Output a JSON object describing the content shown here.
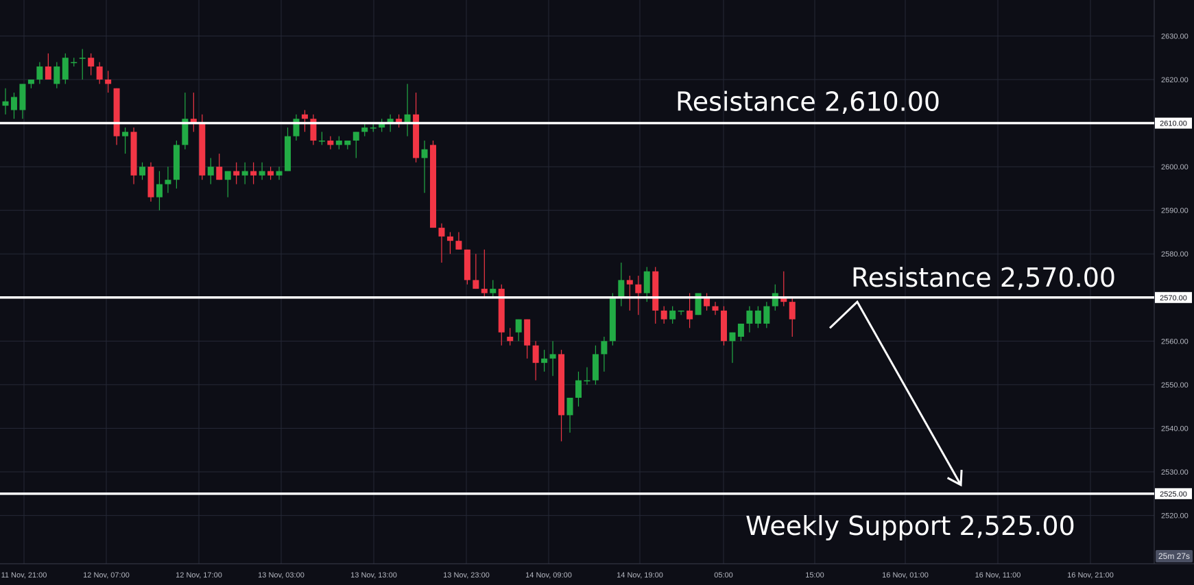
{
  "chart_data": {
    "type": "candlestick",
    "title": "",
    "xlabel": "",
    "ylabel": "",
    "ylim": [
      2510.5,
      2634
    ],
    "y_ticks": [
      "2630.00",
      "2620.00",
      "2610.00",
      "2600.00",
      "2590.00",
      "2580.00",
      "2570.00",
      "2560.00",
      "2550.00",
      "2540.00",
      "2530.00",
      "2520.00"
    ],
    "x_ticks": [
      "11 Nov, 21:00",
      "12 Nov, 07:00",
      "12 Nov, 17:00",
      "13 Nov, 03:00",
      "13 Nov, 13:00",
      "13 Nov, 23:00",
      "14 Nov, 09:00",
      "14 Nov, 19:00",
      "05:00",
      "15:00",
      "16 Nov, 01:00",
      "16 Nov, 11:00",
      "16 Nov, 21:00"
    ],
    "grid": true,
    "colors": {
      "up": "#22ab45",
      "down": "#f23645",
      "background": "#0d0e16",
      "grid": "#252836",
      "level": "#ffffff"
    },
    "candles": [
      {
        "o": 2614,
        "h": 2618,
        "l": 2612,
        "c": 2615
      },
      {
        "o": 2613,
        "h": 2617,
        "l": 2611,
        "c": 2616
      },
      {
        "o": 2613,
        "h": 2619,
        "l": 2611,
        "c": 2619
      },
      {
        "o": 2619,
        "h": 2620,
        "l": 2618,
        "c": 2620
      },
      {
        "o": 2620,
        "h": 2624,
        "l": 2619,
        "c": 2623
      },
      {
        "o": 2623,
        "h": 2626,
        "l": 2620,
        "c": 2620
      },
      {
        "o": 2619,
        "h": 2624,
        "l": 2618,
        "c": 2623
      },
      {
        "o": 2620,
        "h": 2626,
        "l": 2619,
        "c": 2625
      },
      {
        "o": 2624,
        "h": 2625,
        "l": 2623,
        "c": 2624
      },
      {
        "o": 2625,
        "h": 2627,
        "l": 2620,
        "c": 2625
      },
      {
        "o": 2625,
        "h": 2626,
        "l": 2621,
        "c": 2623
      },
      {
        "o": 2623,
        "h": 2624,
        "l": 2619,
        "c": 2620
      },
      {
        "o": 2620,
        "h": 2622,
        "l": 2617,
        "c": 2619
      },
      {
        "o": 2618,
        "h": 2618,
        "l": 2605,
        "c": 2607
      },
      {
        "o": 2607,
        "h": 2609,
        "l": 2603,
        "c": 2608
      },
      {
        "o": 2608,
        "h": 2609,
        "l": 2596,
        "c": 2598
      },
      {
        "o": 2598,
        "h": 2601,
        "l": 2597,
        "c": 2600
      },
      {
        "o": 2600,
        "h": 2601,
        "l": 2592,
        "c": 2593
      },
      {
        "o": 2593,
        "h": 2599,
        "l": 2590,
        "c": 2596
      },
      {
        "o": 2596,
        "h": 2600,
        "l": 2594,
        "c": 2597
      },
      {
        "o": 2597,
        "h": 2606,
        "l": 2595,
        "c": 2605
      },
      {
        "o": 2605,
        "h": 2617,
        "l": 2604,
        "c": 2611
      },
      {
        "o": 2611,
        "h": 2617,
        "l": 2608,
        "c": 2610
      },
      {
        "o": 2610,
        "h": 2612,
        "l": 2597,
        "c": 2598
      },
      {
        "o": 2598,
        "h": 2602,
        "l": 2596,
        "c": 2600
      },
      {
        "o": 2600,
        "h": 2603,
        "l": 2597,
        "c": 2597
      },
      {
        "o": 2597,
        "h": 2599,
        "l": 2593,
        "c": 2599
      },
      {
        "o": 2599,
        "h": 2601,
        "l": 2596,
        "c": 2598
      },
      {
        "o": 2598,
        "h": 2601,
        "l": 2596,
        "c": 2599
      },
      {
        "o": 2599,
        "h": 2601,
        "l": 2596,
        "c": 2598
      },
      {
        "o": 2598,
        "h": 2601,
        "l": 2597,
        "c": 2599
      },
      {
        "o": 2599,
        "h": 2600,
        "l": 2597,
        "c": 2598
      },
      {
        "o": 2598,
        "h": 2600,
        "l": 2597,
        "c": 2599
      },
      {
        "o": 2599,
        "h": 2609,
        "l": 2599,
        "c": 2607
      },
      {
        "o": 2607,
        "h": 2612,
        "l": 2606,
        "c": 2611
      },
      {
        "o": 2612,
        "h": 2613,
        "l": 2608,
        "c": 2611
      },
      {
        "o": 2611,
        "h": 2612,
        "l": 2605,
        "c": 2606
      },
      {
        "o": 2606,
        "h": 2608,
        "l": 2605,
        "c": 2606
      },
      {
        "o": 2606,
        "h": 2607,
        "l": 2604,
        "c": 2605
      },
      {
        "o": 2605,
        "h": 2607,
        "l": 2604,
        "c": 2606
      },
      {
        "o": 2605,
        "h": 2606,
        "l": 2604,
        "c": 2606
      },
      {
        "o": 2606,
        "h": 2608,
        "l": 2602,
        "c": 2608
      },
      {
        "o": 2608,
        "h": 2610,
        "l": 2607,
        "c": 2609
      },
      {
        "o": 2609,
        "h": 2610,
        "l": 2608,
        "c": 2609
      },
      {
        "o": 2609,
        "h": 2611,
        "l": 2608,
        "c": 2610
      },
      {
        "o": 2610,
        "h": 2612,
        "l": 2608,
        "c": 2611
      },
      {
        "o": 2611,
        "h": 2612,
        "l": 2609,
        "c": 2610
      },
      {
        "o": 2610,
        "h": 2619,
        "l": 2607,
        "c": 2612
      },
      {
        "o": 2612,
        "h": 2617,
        "l": 2601,
        "c": 2602
      },
      {
        "o": 2602,
        "h": 2606,
        "l": 2594,
        "c": 2604
      },
      {
        "o": 2605,
        "h": 2606,
        "l": 2586,
        "c": 2586
      },
      {
        "o": 2586,
        "h": 2587,
        "l": 2578,
        "c": 2584
      },
      {
        "o": 2584,
        "h": 2585,
        "l": 2580,
        "c": 2583
      },
      {
        "o": 2583,
        "h": 2585,
        "l": 2581,
        "c": 2581
      },
      {
        "o": 2581,
        "h": 2581,
        "l": 2573,
        "c": 2574
      },
      {
        "o": 2574,
        "h": 2580,
        "l": 2572,
        "c": 2572
      },
      {
        "o": 2572,
        "h": 2581,
        "l": 2570,
        "c": 2571
      },
      {
        "o": 2571,
        "h": 2574,
        "l": 2570,
        "c": 2572
      },
      {
        "o": 2572,
        "h": 2573,
        "l": 2559,
        "c": 2562
      },
      {
        "o": 2561,
        "h": 2563,
        "l": 2559,
        "c": 2560
      },
      {
        "o": 2562,
        "h": 2565,
        "l": 2560,
        "c": 2565
      },
      {
        "o": 2565,
        "h": 2565,
        "l": 2556,
        "c": 2559
      },
      {
        "o": 2559,
        "h": 2560,
        "l": 2551,
        "c": 2555
      },
      {
        "o": 2555,
        "h": 2558,
        "l": 2553,
        "c": 2556
      },
      {
        "o": 2556,
        "h": 2560,
        "l": 2552,
        "c": 2557
      },
      {
        "o": 2557,
        "h": 2558,
        "l": 2537,
        "c": 2543
      },
      {
        "o": 2543,
        "h": 2547,
        "l": 2539,
        "c": 2547
      },
      {
        "o": 2547,
        "h": 2553,
        "l": 2545,
        "c": 2551
      },
      {
        "o": 2551,
        "h": 2554,
        "l": 2550,
        "c": 2551
      },
      {
        "o": 2551,
        "h": 2559,
        "l": 2550,
        "c": 2557
      },
      {
        "o": 2557,
        "h": 2561,
        "l": 2553,
        "c": 2560
      },
      {
        "o": 2560,
        "h": 2571,
        "l": 2559,
        "c": 2570
      },
      {
        "o": 2570,
        "h": 2578,
        "l": 2568,
        "c": 2574
      },
      {
        "o": 2574,
        "h": 2575,
        "l": 2567,
        "c": 2573
      },
      {
        "o": 2573,
        "h": 2575,
        "l": 2566,
        "c": 2571
      },
      {
        "o": 2571,
        "h": 2577,
        "l": 2569,
        "c": 2576
      },
      {
        "o": 2576,
        "h": 2577,
        "l": 2564,
        "c": 2567
      },
      {
        "o": 2567,
        "h": 2568,
        "l": 2564,
        "c": 2565
      },
      {
        "o": 2565,
        "h": 2568,
        "l": 2564,
        "c": 2567
      },
      {
        "o": 2567,
        "h": 2567,
        "l": 2566,
        "c": 2567
      },
      {
        "o": 2567,
        "h": 2571,
        "l": 2563,
        "c": 2565
      },
      {
        "o": 2566,
        "h": 2571,
        "l": 2566,
        "c": 2571
      },
      {
        "o": 2570,
        "h": 2571,
        "l": 2567,
        "c": 2568
      },
      {
        "o": 2568,
        "h": 2569,
        "l": 2566,
        "c": 2567
      },
      {
        "o": 2567,
        "h": 2568,
        "l": 2559,
        "c": 2560
      },
      {
        "o": 2560,
        "h": 2562,
        "l": 2555,
        "c": 2562
      },
      {
        "o": 2561,
        "h": 2564,
        "l": 2560,
        "c": 2564
      },
      {
        "o": 2564,
        "h": 2568,
        "l": 2562,
        "c": 2567
      },
      {
        "o": 2564,
        "h": 2568,
        "l": 2563,
        "c": 2567
      },
      {
        "o": 2564,
        "h": 2569,
        "l": 2563,
        "c": 2568
      },
      {
        "o": 2568,
        "h": 2573,
        "l": 2567,
        "c": 2571
      },
      {
        "o": 2570,
        "h": 2576,
        "l": 2568,
        "c": 2569
      },
      {
        "o": 2569,
        "h": 2570,
        "l": 2561,
        "c": 2565
      }
    ],
    "levels": [
      {
        "name": "Resistance 2,610.00",
        "value": 2610,
        "tag": "2610.00"
      },
      {
        "name": "Resistance 2,570.00",
        "value": 2570,
        "tag": "2570.00"
      },
      {
        "name": "Weekly Support 2,525.00",
        "value": 2525,
        "tag": "2525.00"
      }
    ],
    "annotations": [
      {
        "text": "Resistance 2,610.00"
      },
      {
        "text": "Resistance 2,570.00"
      },
      {
        "text": "Weekly Support 2,525.00"
      }
    ],
    "projection": {
      "description": "zigzag arrow",
      "points": [
        {
          "x": "15 Nov, 15:00",
          "y": 2563
        },
        {
          "x": "15 Nov, 19:00",
          "y": 2569
        },
        {
          "x": "16 Nov, 09:00",
          "y": 2527
        }
      ]
    },
    "countdown": "25m 27s"
  }
}
